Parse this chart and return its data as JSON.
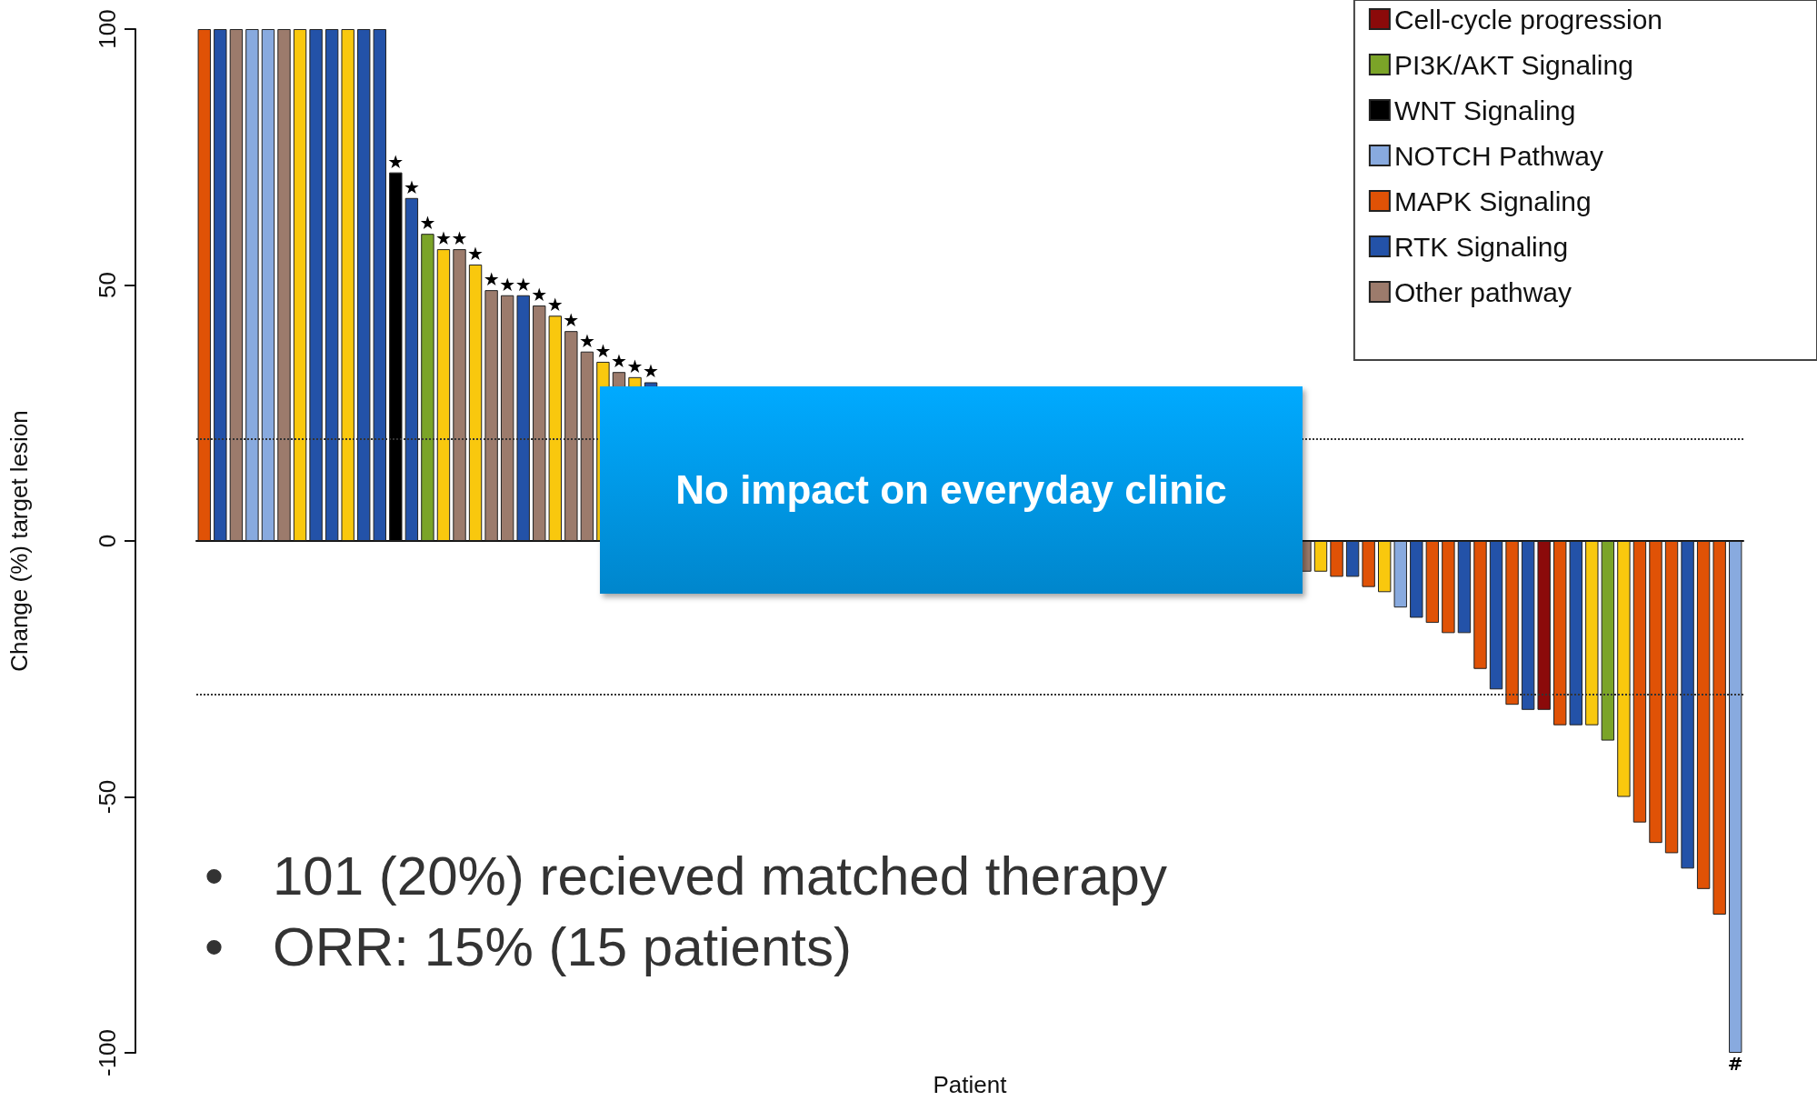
{
  "chart_data": {
    "type": "bar",
    "xlabel": "Patient",
    "ylabel": "Change (%) target lesion",
    "categories": [
      null,
      null,
      null,
      null,
      null,
      null,
      null,
      null,
      null,
      null,
      null,
      null,
      null,
      null,
      null,
      null,
      null,
      null,
      null,
      null,
      null,
      null,
      null,
      null,
      null,
      null,
      null,
      null,
      null,
      null,
      null,
      null,
      null,
      null,
      null,
      null,
      null,
      null,
      null,
      null,
      null,
      null,
      null,
      null,
      null,
      null,
      null,
      null,
      null,
      null,
      null,
      null,
      null,
      null,
      null,
      null,
      null,
      null,
      null,
      null,
      null,
      null,
      null,
      null,
      null,
      null,
      null,
      null,
      null,
      null,
      null,
      null,
      null,
      null,
      null,
      null,
      null,
      null,
      null,
      null,
      null,
      null,
      null,
      null,
      null,
      null,
      null,
      null,
      null,
      null,
      null,
      null,
      null,
      null,
      null,
      null,
      null
    ],
    "series": [
      {
        "name": "Cell-cycle progression",
        "color": "#8b0a0a",
        "values": [
          null,
          null,
          null,
          null,
          null,
          null,
          null,
          null,
          null,
          null,
          null,
          null,
          null,
          null,
          null,
          null,
          null,
          null,
          null,
          null,
          null,
          null,
          null,
          null,
          null,
          null,
          null,
          null,
          null,
          null,
          null,
          null,
          null,
          null,
          null,
          null,
          null,
          null,
          null,
          null,
          null,
          null,
          null,
          null,
          null,
          null,
          null,
          null,
          null,
          null,
          null,
          null,
          null,
          null,
          null,
          null,
          null,
          null,
          null,
          null,
          null,
          null,
          null,
          null,
          null,
          null,
          null,
          null,
          null,
          null,
          null,
          null,
          null,
          null,
          null,
          null,
          null,
          null,
          null,
          null,
          null,
          null,
          null,
          null,
          -33,
          null,
          null,
          null,
          null,
          null,
          null,
          null,
          null,
          null,
          null,
          null,
          null
        ]
      },
      {
        "name": "PI3K/AKT Signaling",
        "color": "#7ba428",
        "values": [
          null,
          null,
          null,
          null,
          null,
          null,
          null,
          null,
          null,
          null,
          null,
          null,
          null,
          null,
          60,
          null,
          null,
          null,
          null,
          null,
          null,
          null,
          null,
          null,
          null,
          null,
          null,
          null,
          null,
          null,
          null,
          null,
          null,
          null,
          null,
          null,
          null,
          null,
          null,
          null,
          null,
          null,
          null,
          null,
          null,
          null,
          null,
          null,
          null,
          null,
          null,
          null,
          null,
          null,
          null,
          null,
          null,
          null,
          null,
          null,
          null,
          null,
          null,
          null,
          null,
          null,
          null,
          null,
          null,
          null,
          null,
          null,
          null,
          null,
          null,
          null,
          null,
          null,
          null,
          null,
          null,
          null,
          null,
          null,
          null,
          null,
          null,
          null,
          -39,
          null,
          null,
          null,
          null,
          null,
          null,
          null,
          null
        ],
        "value_labels": [
          null,
          null,
          null,
          null,
          null,
          null,
          null,
          null,
          null,
          null,
          null,
          null,
          null,
          null,
          "★",
          null,
          null,
          null,
          null,
          null,
          null,
          null,
          null,
          null,
          null,
          null,
          null,
          null,
          null,
          null,
          null,
          null,
          null,
          null,
          null,
          null,
          null,
          null,
          null,
          null,
          null,
          null,
          null,
          null,
          null,
          null,
          null,
          null,
          null,
          null,
          null,
          null,
          null,
          null,
          null,
          null,
          null,
          null,
          null,
          null,
          null,
          null,
          null,
          null,
          null,
          null,
          null,
          null,
          null,
          null,
          null,
          null,
          null,
          null,
          null,
          null,
          null,
          null,
          null,
          null,
          null,
          null,
          null,
          null,
          null,
          null,
          null,
          null,
          null,
          null,
          null,
          null,
          null,
          null,
          null,
          null,
          null
        ]
      },
      {
        "name": "WNT Signaling",
        "color": "#000000",
        "values": [
          null,
          null,
          null,
          null,
          null,
          null,
          null,
          null,
          null,
          null,
          null,
          null,
          72,
          null,
          null,
          null,
          null,
          null,
          null,
          null,
          null,
          null,
          null,
          null,
          null,
          null,
          null,
          null,
          null,
          null,
          null,
          null,
          null,
          null,
          null,
          null,
          null,
          null,
          null,
          null,
          null,
          null,
          null,
          null,
          null,
          null,
          null,
          null,
          null,
          null,
          null,
          null,
          null,
          null,
          null,
          null,
          null,
          null,
          null,
          null,
          null,
          null,
          null,
          null,
          null,
          null,
          null,
          null,
          null,
          null,
          null,
          null,
          null,
          null,
          null,
          null,
          null,
          null,
          null,
          null,
          null,
          null,
          null,
          null,
          null,
          null,
          null,
          null,
          null,
          null,
          null,
          null,
          null,
          null,
          null,
          null,
          null
        ],
        "value_labels": [
          null,
          null,
          null,
          null,
          null,
          null,
          null,
          null,
          null,
          null,
          null,
          null,
          "★",
          null,
          null,
          null,
          null,
          null,
          null,
          null,
          null,
          null,
          null,
          null,
          null,
          null,
          null,
          null,
          null,
          null,
          null,
          null,
          null,
          null,
          null,
          null,
          null,
          null,
          null,
          null,
          null,
          null,
          null,
          null,
          null,
          null,
          null,
          null,
          null,
          null,
          null,
          null,
          null,
          null,
          null,
          null,
          null,
          null,
          null,
          null,
          null,
          null,
          null,
          null,
          null,
          null,
          null,
          null,
          null,
          null,
          null,
          null,
          null,
          null,
          null,
          null,
          null,
          null,
          null,
          null,
          null,
          null,
          null,
          null,
          null,
          null,
          null,
          null,
          null,
          null,
          null,
          null,
          null,
          null,
          null,
          null,
          null
        ]
      },
      {
        "name": "NOTCH Pathway",
        "color": "#88aadf",
        "values": [
          null,
          null,
          null,
          100,
          100,
          null,
          null,
          null,
          null,
          null,
          null,
          null,
          null,
          null,
          null,
          null,
          null,
          null,
          null,
          null,
          null,
          null,
          null,
          null,
          null,
          null,
          null,
          null,
          null,
          null,
          null,
          null,
          null,
          null,
          null,
          null,
          null,
          null,
          null,
          null,
          null,
          null,
          null,
          null,
          null,
          null,
          null,
          null,
          null,
          null,
          null,
          null,
          null,
          null,
          null,
          null,
          null,
          null,
          null,
          null,
          null,
          null,
          null,
          null,
          null,
          null,
          null,
          null,
          null,
          null,
          null,
          null,
          null,
          null,
          null,
          -13,
          null,
          null,
          null,
          null,
          null,
          null,
          null,
          null,
          null,
          null,
          null,
          null,
          null,
          null,
          null,
          null,
          null,
          null,
          null,
          null,
          -100
        ],
        "value_labels": [
          null,
          null,
          null,
          null,
          null,
          null,
          null,
          null,
          null,
          null,
          null,
          null,
          null,
          null,
          null,
          null,
          null,
          null,
          null,
          null,
          null,
          null,
          null,
          null,
          null,
          null,
          null,
          null,
          null,
          null,
          null,
          null,
          null,
          null,
          null,
          null,
          null,
          null,
          null,
          null,
          null,
          null,
          null,
          null,
          null,
          null,
          null,
          null,
          null,
          null,
          null,
          null,
          null,
          null,
          null,
          null,
          null,
          null,
          null,
          null,
          null,
          null,
          null,
          null,
          null,
          null,
          null,
          null,
          null,
          null,
          null,
          null,
          null,
          null,
          null,
          null,
          null,
          null,
          null,
          null,
          null,
          null,
          null,
          null,
          null,
          null,
          null,
          null,
          null,
          null,
          null,
          null,
          null,
          null,
          null,
          null,
          "#"
        ]
      },
      {
        "name": "MAPK Signaling",
        "color": "#e05206",
        "values": [
          100,
          null,
          null,
          null,
          null,
          null,
          null,
          null,
          null,
          null,
          null,
          null,
          null,
          null,
          null,
          null,
          null,
          null,
          null,
          null,
          null,
          null,
          null,
          null,
          null,
          null,
          null,
          null,
          null,
          null,
          null,
          null,
          null,
          null,
          null,
          null,
          null,
          null,
          null,
          null,
          null,
          null,
          null,
          null,
          null,
          null,
          null,
          null,
          null,
          null,
          null,
          null,
          null,
          null,
          null,
          null,
          null,
          null,
          null,
          null,
          null,
          null,
          null,
          null,
          null,
          null,
          null,
          null,
          null,
          null,
          null,
          -7,
          null,
          -9,
          null,
          null,
          null,
          -16,
          -18,
          null,
          -25,
          null,
          -32,
          null,
          null,
          -36,
          null,
          null,
          null,
          null,
          -55,
          -59,
          -61,
          null,
          -68,
          -73,
          null
        ]
      },
      {
        "name": "RTK Signaling",
        "color": "#2352a8",
        "values": [
          null,
          100,
          null,
          null,
          null,
          null,
          null,
          100,
          100,
          null,
          100,
          100,
          null,
          67,
          null,
          null,
          null,
          null,
          null,
          null,
          48,
          null,
          null,
          null,
          null,
          null,
          null,
          null,
          31,
          null,
          null,
          null,
          null,
          null,
          null,
          null,
          null,
          null,
          null,
          null,
          null,
          null,
          null,
          null,
          null,
          null,
          null,
          null,
          null,
          null,
          null,
          null,
          null,
          null,
          null,
          null,
          null,
          null,
          null,
          null,
          null,
          null,
          null,
          null,
          null,
          null,
          null,
          null,
          null,
          null,
          null,
          null,
          -7,
          null,
          null,
          null,
          -15,
          null,
          null,
          -18,
          null,
          -29,
          null,
          -33,
          null,
          null,
          -36,
          null,
          null,
          null,
          null,
          null,
          null,
          -64,
          null,
          null,
          null
        ],
        "value_labels": [
          null,
          null,
          null,
          null,
          null,
          null,
          null,
          null,
          null,
          null,
          null,
          null,
          null,
          "★",
          null,
          null,
          null,
          null,
          null,
          null,
          "★",
          null,
          null,
          null,
          null,
          null,
          null,
          null,
          "★",
          null,
          null,
          null,
          null,
          null,
          null,
          null,
          null,
          null,
          null,
          null,
          null,
          null,
          null,
          null,
          null,
          null,
          null,
          null,
          null,
          null,
          null,
          null,
          null,
          null,
          null,
          null,
          null,
          null,
          null,
          null,
          null,
          null,
          null,
          null,
          null,
          null,
          null,
          null,
          null,
          null,
          null,
          null,
          null,
          null,
          null,
          null,
          null,
          null,
          null,
          null,
          null,
          null,
          null,
          null,
          null,
          null,
          null,
          null,
          null,
          null,
          null,
          null,
          null,
          null,
          null,
          null,
          null
        ]
      },
      {
        "name": "Other pathway",
        "color": "#9c7b6c",
        "values": [
          null,
          null,
          100,
          null,
          null,
          100,
          null,
          null,
          null,
          null,
          null,
          null,
          null,
          null,
          null,
          null,
          57,
          null,
          49,
          48,
          null,
          46,
          null,
          41,
          37,
          null,
          33,
          null,
          null,
          null,
          null,
          null,
          null,
          null,
          null,
          null,
          null,
          null,
          null,
          null,
          null,
          null,
          null,
          null,
          null,
          null,
          null,
          null,
          null,
          null,
          null,
          null,
          null,
          null,
          null,
          null,
          null,
          null,
          null,
          null,
          null,
          null,
          null,
          null,
          null,
          null,
          null,
          null,
          null,
          -6,
          null,
          null,
          null,
          null,
          null,
          null,
          null,
          null,
          null,
          null,
          null,
          null,
          null,
          null,
          null,
          null,
          null,
          null,
          null,
          null,
          null,
          null,
          null,
          null,
          null,
          null,
          null
        ],
        "value_labels": [
          null,
          null,
          null,
          null,
          null,
          null,
          null,
          null,
          null,
          null,
          null,
          null,
          null,
          null,
          null,
          null,
          "★",
          null,
          "★",
          "★",
          null,
          "★",
          null,
          "★",
          "★",
          null,
          "★",
          null,
          null,
          null,
          null,
          null,
          null,
          null,
          null,
          null,
          null,
          null,
          null,
          null,
          null,
          null,
          null,
          null,
          null,
          null,
          null,
          null,
          null,
          null,
          null,
          null,
          null,
          null,
          null,
          null,
          null,
          null,
          null,
          null,
          null,
          null,
          null,
          null,
          null,
          null,
          null,
          null,
          null,
          null,
          null,
          null,
          null,
          null,
          null,
          null,
          null,
          null,
          null,
          null,
          null,
          null,
          null,
          null,
          null,
          null,
          null,
          null,
          null,
          null,
          null,
          null,
          null,
          null,
          null,
          null,
          null
        ]
      },
      {
        "color": "#f9c80e",
        "values": [
          null,
          null,
          null,
          null,
          null,
          null,
          100,
          null,
          null,
          100,
          null,
          null,
          null,
          null,
          null,
          57,
          null,
          54,
          null,
          null,
          null,
          null,
          44,
          null,
          null,
          35,
          null,
          32,
          null,
          null,
          null,
          null,
          null,
          null,
          null,
          null,
          null,
          null,
          null,
          null,
          null,
          null,
          null,
          null,
          null,
          null,
          null,
          null,
          null,
          null,
          null,
          null,
          null,
          null,
          null,
          null,
          null,
          null,
          null,
          null,
          null,
          null,
          null,
          null,
          null,
          null,
          null,
          null,
          null,
          null,
          -6,
          null,
          null,
          null,
          -10,
          null,
          null,
          null,
          null,
          null,
          null,
          null,
          null,
          null,
          null,
          null,
          null,
          -36,
          null,
          -50,
          null,
          null,
          null,
          null,
          null,
          null,
          null
        ],
        "value_labels": [
          null,
          null,
          null,
          null,
          null,
          null,
          null,
          null,
          null,
          null,
          null,
          null,
          null,
          null,
          null,
          "★",
          null,
          "★",
          null,
          null,
          null,
          null,
          "★",
          null,
          null,
          "★",
          null,
          "★",
          null,
          null,
          null,
          null,
          null,
          null,
          null,
          null,
          null,
          null,
          null,
          null,
          null,
          null,
          null,
          null,
          null,
          null,
          null,
          null,
          null,
          null,
          null,
          null,
          null,
          null,
          null,
          null,
          null,
          null,
          null,
          null,
          null,
          null,
          null,
          null,
          null,
          null,
          null,
          null,
          null,
          null,
          null,
          null,
          null,
          null,
          null,
          null,
          null,
          null,
          null,
          null,
          null,
          null,
          null,
          null,
          null,
          null,
          null,
          null,
          null,
          null,
          null,
          null,
          null,
          null,
          null,
          null,
          null
        ]
      }
    ],
    "ylim": [
      -100,
      100
    ],
    "yticks": [
      -100,
      -50,
      0,
      50,
      100
    ],
    "tick_labels": "y",
    "legend": "top right",
    "ref_lines": [
      {
        "axis": "y",
        "value": 20,
        "line_style": "dotted"
      },
      {
        "axis": "y",
        "value": -30,
        "line_style": "dotted"
      }
    ],
    "annotations": [
      "No impact on everyday clinic",
      "• 101 (20%) recieved matched therapy",
      "• ORR: 15% (15 patients)"
    ]
  }
}
